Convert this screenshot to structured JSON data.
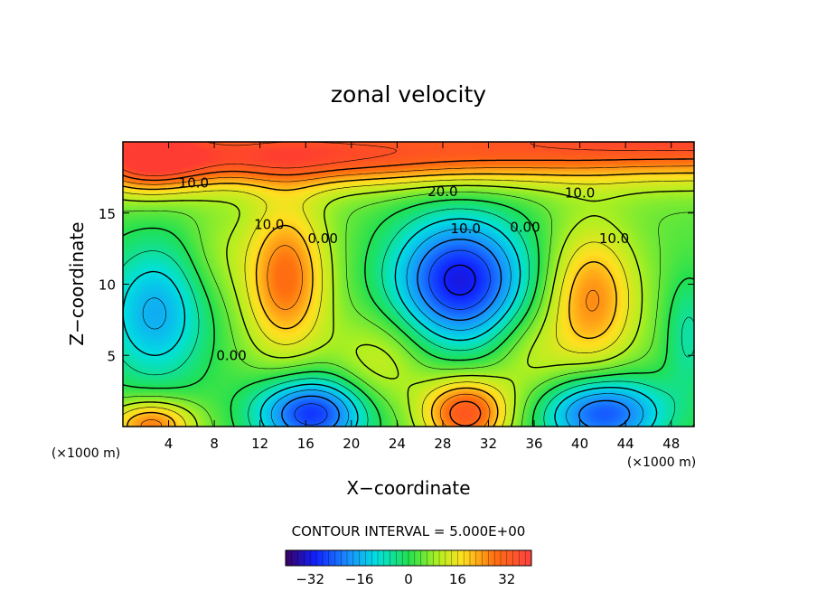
{
  "chart_data": {
    "type": "heatmap",
    "title": "zonal velocity",
    "xlabel": "X−coordinate",
    "ylabel": "Z−coordinate",
    "x_unit_left": "(×1000 m)",
    "x_unit_right": "(×1000 m)",
    "xlim": [
      0,
      50
    ],
    "ylim": [
      0,
      20
    ],
    "x_ticks": [
      4,
      8,
      12,
      16,
      20,
      24,
      28,
      32,
      36,
      40,
      44,
      48
    ],
    "y_ticks": [
      5,
      10,
      15
    ],
    "contour_interval_text": "CONTOUR INTERVAL = 5.000E+00",
    "colorbar": {
      "range": [
        -40,
        40
      ],
      "ticks": [
        -32,
        -16,
        0,
        16,
        32
      ]
    },
    "contour_labels": [
      {
        "text": "10.0",
        "x": 6.2,
        "y": 17.1
      },
      {
        "text": "20.0",
        "x": 28.0,
        "y": 16.5
      },
      {
        "text": "10.0",
        "x": 40.0,
        "y": 16.4
      },
      {
        "text": "10.0",
        "x": 12.8,
        "y": 14.2
      },
      {
        "text": "0.00",
        "x": 17.5,
        "y": 13.2
      },
      {
        "text": "10.0",
        "x": 30.0,
        "y": 13.9
      },
      {
        "text": "0.00",
        "x": 35.2,
        "y": 14.0
      },
      {
        "text": "10.0",
        "x": 43.0,
        "y": 13.2
      },
      {
        "text": "0.00",
        "x": 9.5,
        "y": 5.0
      }
    ],
    "field_centers": [
      {
        "x": 50,
        "y": 20.3,
        "value": 34,
        "sx": 22,
        "sz": 2.0
      },
      {
        "x": 12,
        "y": 19.0,
        "value": 26,
        "sx": 10,
        "sz": 1.5
      },
      {
        "x": 2,
        "y": 19.0,
        "value": 26,
        "sx": 3.5,
        "sz": 1.8
      },
      {
        "x": 30,
        "y": 18.6,
        "value": 6,
        "sx": 8,
        "sz": 1.3
      },
      {
        "x": 14.2,
        "y": 10.5,
        "value": 25,
        "sx": 2.6,
        "sz": 3.8
      },
      {
        "x": 29.5,
        "y": 10.3,
        "value": -36,
        "sx": 4.2,
        "sz": 3.2
      },
      {
        "x": 2.8,
        "y": 8.0,
        "value": -20,
        "sx": 3.3,
        "sz": 3.5
      },
      {
        "x": 41,
        "y": 9.0,
        "value": 22,
        "sx": 2.8,
        "sz": 3.5
      },
      {
        "x": 49.5,
        "y": 6.5,
        "value": -10,
        "sx": 1.5,
        "sz": 3.0
      },
      {
        "x": 16.5,
        "y": 1.0,
        "value": -33,
        "sx": 3.5,
        "sz": 1.8
      },
      {
        "x": 42,
        "y": 1.0,
        "value": -30,
        "sx": 3.8,
        "sz": 1.8
      },
      {
        "x": 30,
        "y": 1.0,
        "value": 30,
        "sx": 2.6,
        "sz": 1.7
      },
      {
        "x": 2.5,
        "y": 0.2,
        "value": 24,
        "sx": 2.6,
        "sz": 1.2
      },
      {
        "x": 22.5,
        "y": 4.5,
        "value": 10,
        "sx": 3,
        "sz": 2.5
      },
      {
        "x": 35.5,
        "y": 5,
        "value": 8,
        "sx": 2.5,
        "sz": 2.5
      },
      {
        "x": 8,
        "y": 12,
        "value": 5,
        "sx": 2,
        "sz": 2.5
      }
    ]
  }
}
